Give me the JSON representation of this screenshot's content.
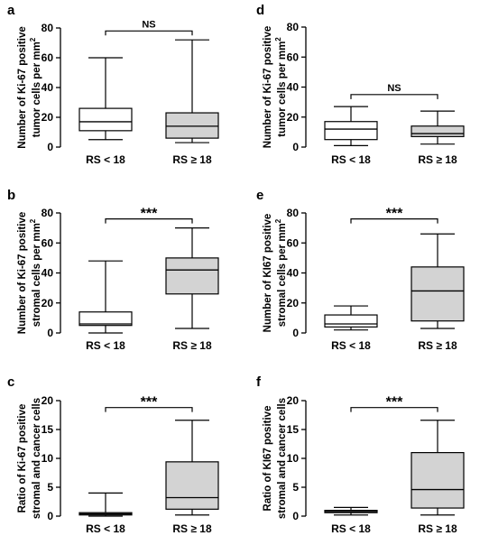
{
  "chart_data": [
    {
      "type": "box",
      "panel_label": "a",
      "ylabel_lines": [
        "Number of Ki-67 positive",
        "tumor cells per mm"
      ],
      "ylabel_superscript": "2",
      "ylim": [
        0,
        80
      ],
      "yticks": [
        0,
        20,
        40,
        60,
        80
      ],
      "categories": [
        "RS < 18",
        "RS ≥ 18"
      ],
      "boxes": [
        {
          "min": 5,
          "q1": 11,
          "median": 17,
          "q3": 26,
          "max": 60,
          "fill": "#ffffff"
        },
        {
          "min": 3,
          "q1": 6,
          "median": 14,
          "q3": 23,
          "max": 72,
          "fill": "#d3d3d3"
        }
      ],
      "significance": "NS",
      "bracket_y": 78
    },
    {
      "type": "box",
      "panel_label": "b",
      "ylabel_lines": [
        "Number of Ki-67 positive",
        "stromal cells per mm"
      ],
      "ylabel_superscript": "2",
      "ylim": [
        0,
        80
      ],
      "yticks": [
        0,
        20,
        40,
        60,
        80
      ],
      "categories": [
        "RS < 18",
        "RS ≥ 18"
      ],
      "boxes": [
        {
          "min": 0,
          "q1": 5,
          "median": 6,
          "q3": 14,
          "max": 48,
          "fill": "#ffffff"
        },
        {
          "min": 3,
          "q1": 26,
          "median": 42,
          "q3": 50,
          "max": 70,
          "fill": "#d3d3d3"
        }
      ],
      "significance": "***",
      "bracket_y": 76
    },
    {
      "type": "box",
      "panel_label": "c",
      "ylabel_lines": [
        "Ratio of Ki-67 positive",
        "stromal and cancer cells"
      ],
      "ylabel_superscript": "",
      "ylim": [
        0,
        20
      ],
      "yticks": [
        0,
        5,
        10,
        15,
        20
      ],
      "categories": [
        "RS < 18",
        "RS ≥ 18"
      ],
      "boxes": [
        {
          "min": 0,
          "q1": 0.2,
          "median": 0.4,
          "q3": 0.6,
          "max": 4,
          "fill": "#ffffff"
        },
        {
          "min": 0.2,
          "q1": 1.2,
          "median": 3.2,
          "q3": 9.4,
          "max": 16.6,
          "fill": "#d3d3d3"
        }
      ],
      "significance": "***",
      "bracket_y": 18.8
    },
    {
      "type": "box",
      "panel_label": "d",
      "ylabel_lines": [
        "Number of Ki-67 positive",
        "tumor cells per mm"
      ],
      "ylabel_superscript": "2",
      "ylim": [
        0,
        80
      ],
      "yticks": [
        0,
        20,
        40,
        60,
        80
      ],
      "categories": [
        "RS < 18",
        "RS ≥ 18"
      ],
      "boxes": [
        {
          "min": 1,
          "q1": 5,
          "median": 12,
          "q3": 17,
          "max": 27,
          "fill": "#ffffff"
        },
        {
          "min": 2,
          "q1": 7,
          "median": 9,
          "q3": 14,
          "max": 24,
          "fill": "#d3d3d3"
        }
      ],
      "significance": "NS",
      "bracket_y": 35
    },
    {
      "type": "box",
      "panel_label": "e",
      "ylabel_lines": [
        "Number of KI67 positive",
        "stromal cells per mm"
      ],
      "ylabel_superscript": "2",
      "ylim": [
        0,
        80
      ],
      "yticks": [
        0,
        20,
        40,
        60,
        80
      ],
      "categories": [
        "RS < 18",
        "RS ≥ 18"
      ],
      "boxes": [
        {
          "min": 2,
          "q1": 4,
          "median": 6,
          "q3": 12,
          "max": 18,
          "fill": "#ffffff"
        },
        {
          "min": 3,
          "q1": 8,
          "median": 28,
          "q3": 44,
          "max": 66,
          "fill": "#d3d3d3"
        }
      ],
      "significance": "***",
      "bracket_y": 76
    },
    {
      "type": "box",
      "panel_label": "f",
      "ylabel_lines": [
        "Ratio of KI67 positive",
        "stromal and cancer cells"
      ],
      "ylabel_superscript": "",
      "ylim": [
        0,
        20
      ],
      "yticks": [
        0,
        5,
        10,
        15,
        20
      ],
      "categories": [
        "RS < 18",
        "RS ≥ 18"
      ],
      "boxes": [
        {
          "min": 0.2,
          "q1": 0.6,
          "median": 0.8,
          "q3": 1.0,
          "max": 1.5,
          "fill": "#ffffff"
        },
        {
          "min": 0.2,
          "q1": 1.4,
          "median": 4.6,
          "q3": 11,
          "max": 16.6,
          "fill": "#d3d3d3"
        }
      ],
      "significance": "***",
      "bracket_y": 18.8
    }
  ]
}
